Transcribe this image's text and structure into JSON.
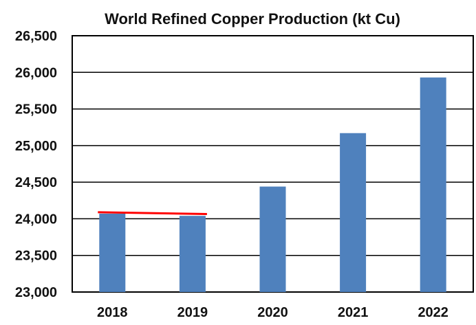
{
  "chart_data": {
    "type": "bar",
    "title": "World Refined Copper Production (kt Cu)",
    "xlabel": "",
    "ylabel": "",
    "categories": [
      "2018",
      "2019",
      "2020",
      "2021",
      "2022"
    ],
    "values": [
      24070,
      24040,
      24440,
      25170,
      25930
    ],
    "ylim": [
      23000,
      26500
    ],
    "y_ticks": [
      23000,
      23500,
      24000,
      24500,
      25000,
      25500,
      26000,
      26500
    ],
    "y_tick_labels": [
      "23,000",
      "23,500",
      "24,000",
      "24,500",
      "25,000",
      "25,500",
      "26,000",
      "26,500"
    ],
    "grid": true,
    "legend": "none",
    "annotations": [
      {
        "type": "line",
        "x_from": "2018",
        "x_to": "2019",
        "y_from": 24090,
        "y_to": 24065,
        "color": "#ff0000"
      }
    ],
    "colors": {
      "bar": "#4f81bd",
      "grid": "#000000",
      "annotation_line": "#ff0000"
    }
  }
}
